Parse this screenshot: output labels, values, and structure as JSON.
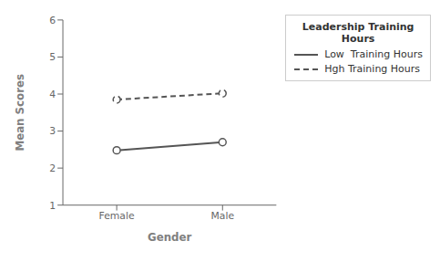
{
  "chart_data": {
    "type": "line",
    "categories": [
      "Female",
      "Male"
    ],
    "series": [
      {
        "name": "Low  Training Hours",
        "color": "#555555",
        "line_style": "solid",
        "marker": "o",
        "values": [
          2.48,
          2.7
        ]
      },
      {
        "name": "Hgh Training Hours",
        "color": "#555555",
        "line_style": "dashed",
        "marker": "o",
        "values": [
          3.85,
          4.02
        ]
      }
    ],
    "xlabel": "Gender",
    "ylabel": "Mean Scores",
    "ylim": [
      1,
      6
    ],
    "yticks": [
      1,
      2,
      3,
      4,
      5,
      6
    ],
    "grid": false,
    "legend": "right",
    "legend_title": "Leadership Training\n      Hours"
  }
}
